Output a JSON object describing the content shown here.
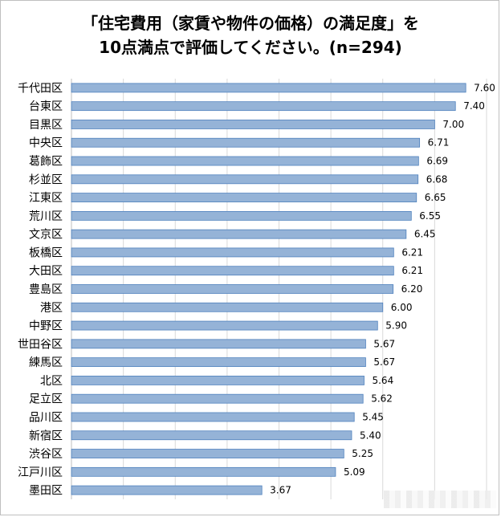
{
  "title_line1": "「住宅費用（家賃や物件の価格）の満足度」を",
  "title_line2": "10点満点で評価してください。(n=294)",
  "chart_data": {
    "type": "bar",
    "orientation": "horizontal",
    "title": "「住宅費用（家賃や物件の価格）の満足度」を10点満点で評価してください。(n=294)",
    "categories": [
      "千代田区",
      "台東区",
      "目黒区",
      "中央区",
      "葛飾区",
      "杉並区",
      "江東区",
      "荒川区",
      "文京区",
      "板橋区",
      "大田区",
      "豊島区",
      "港区",
      "中野区",
      "世田谷区",
      "練馬区",
      "北区",
      "足立区",
      "品川区",
      "新宿区",
      "渋谷区",
      "江戸川区",
      "墨田区"
    ],
    "values": [
      7.6,
      7.4,
      7.0,
      6.71,
      6.69,
      6.68,
      6.65,
      6.55,
      6.45,
      6.21,
      6.21,
      6.2,
      6.0,
      5.9,
      5.67,
      5.67,
      5.64,
      5.62,
      5.45,
      5.4,
      5.25,
      5.09,
      3.67
    ],
    "value_labels": [
      "7.60",
      "7.40",
      "7.00",
      "6.71",
      "6.69",
      "6.68",
      "6.65",
      "6.55",
      "6.45",
      "6.21",
      "6.21",
      "6.20",
      "6.00",
      "5.90",
      "5.67",
      "5.67",
      "5.64",
      "5.62",
      "5.45",
      "5.40",
      "5.25",
      "5.09",
      "3.67"
    ],
    "xlim": [
      0,
      8
    ],
    "grid": true,
    "tick_labels_shown": false,
    "bar_color": "#95b3d7",
    "bar_edge_color": "#4f81bd",
    "grid_color": "#d9d9d9"
  }
}
